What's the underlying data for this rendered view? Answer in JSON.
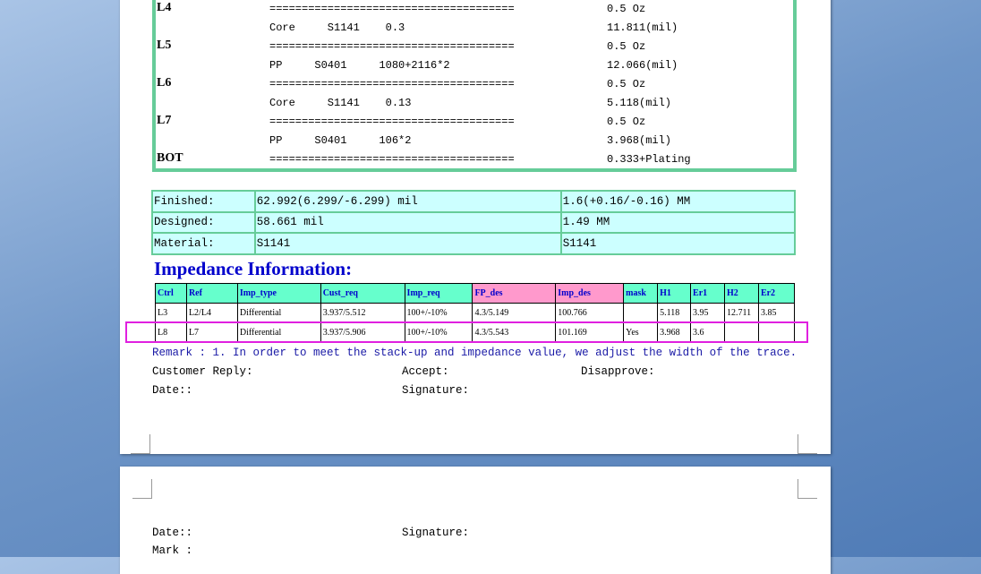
{
  "stackup": [
    {
      "layer": "L4",
      "middle": "======================================",
      "value": "0.5 Oz"
    },
    {
      "layer": "",
      "middle": "Core     S1141    0.3",
      "value": "11.811(mil)"
    },
    {
      "layer": "L5",
      "middle": "======================================",
      "value": "0.5 Oz"
    },
    {
      "layer": "",
      "middle": "PP     S0401     1080+2116*2",
      "value": "12.066(mil)"
    },
    {
      "layer": "L6",
      "middle": "======================================",
      "value": "0.5 Oz"
    },
    {
      "layer": "",
      "middle": "Core     S1141    0.13",
      "value": "5.118(mil)"
    },
    {
      "layer": "L7",
      "middle": "======================================",
      "value": "0.5 Oz"
    },
    {
      "layer": "",
      "middle": "PP     S0401     106*2",
      "value": "3.968(mil)"
    },
    {
      "layer": "BOT",
      "middle": "======================================",
      "value": "0.333+Plating"
    }
  ],
  "info": [
    [
      "Finished:",
      "62.992(6.299/-6.299) mil",
      "1.6(+0.16/-0.16) MM"
    ],
    [
      "Designed:",
      "58.661 mil",
      "1.49 MM"
    ],
    [
      "Material:",
      "S1141",
      "S1141"
    ]
  ],
  "impedance": {
    "title": "Impedance Information:",
    "headers": [
      "Ctrl",
      "Ref",
      "Imp_type",
      "Cust_req",
      "Imp_req",
      "FP_des",
      "Imp_des",
      "mask",
      "H1",
      "Er1",
      "H2",
      "Er2"
    ],
    "rows": [
      [
        "L3",
        "L2/L4",
        "Differential",
        "3.937/5.512",
        "100+/-10%",
        "4.3/5.149",
        "100.766",
        "",
        "5.118",
        "3.95",
        "12.711",
        "3.85"
      ],
      [
        "L8",
        "L7",
        "Differential",
        "3.937/5.906",
        "100+/-10%",
        "4.3/5.543",
        "101.169",
        "Yes",
        "3.968",
        "3.6",
        "",
        ""
      ]
    ]
  },
  "remark": "Remark : 1. In order to meet the stack-up and impedance value, we adjust the width of the trace.",
  "customer_reply": "Customer Reply:",
  "accept": "Accept:",
  "disapprove": "Disapprove:",
  "date": "Date::",
  "signature": "Signature:",
  "page2": {
    "date": "Date::",
    "signature": "Signature:",
    "mark": "Mark :"
  }
}
